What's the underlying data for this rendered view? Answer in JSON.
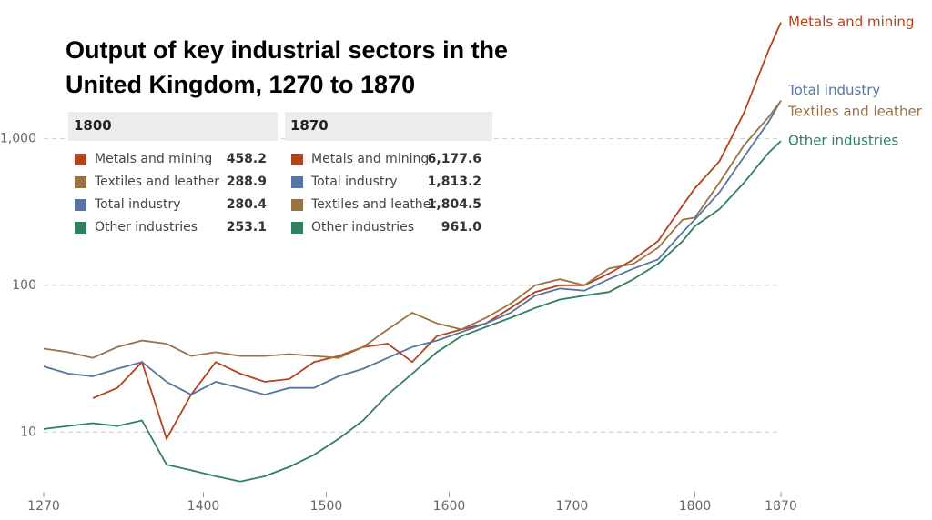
{
  "chart_data": {
    "type": "line",
    "title": "Output of key industrial sectors in the United Kingdom, 1270 to 1870",
    "x": [
      1270,
      1290,
      1310,
      1330,
      1350,
      1370,
      1390,
      1410,
      1430,
      1450,
      1470,
      1490,
      1510,
      1530,
      1550,
      1570,
      1590,
      1610,
      1630,
      1650,
      1670,
      1690,
      1710,
      1730,
      1750,
      1770,
      1790,
      1800,
      1820,
      1840,
      1860,
      1870
    ],
    "xlim": [
      1270,
      1870
    ],
    "xticks": [
      1270,
      1400,
      1500,
      1600,
      1700,
      1800,
      1870
    ],
    "ylim": [
      3.7,
      6600
    ],
    "yticks": [
      10,
      100,
      {
        "value": 1000,
        "label": "1,000"
      }
    ],
    "log_scale": true,
    "grid": true,
    "series": [
      {
        "name": "Metals and mining",
        "color": "#b5421e",
        "values": [
          null,
          null,
          17,
          20,
          30,
          9,
          18,
          30,
          25,
          22,
          23,
          30,
          33,
          38,
          40,
          30,
          45,
          50,
          55,
          70,
          90,
          100,
          100,
          120,
          150,
          200,
          350,
          458.2,
          700,
          1500,
          4000,
          6177.6
        ]
      },
      {
        "name": "Total industry",
        "color": "#5674a4",
        "values": [
          28,
          25,
          24,
          27,
          30,
          22,
          18,
          22,
          20,
          18,
          20,
          20,
          24,
          27,
          32,
          38,
          42,
          48,
          55,
          65,
          85,
          95,
          92,
          110,
          130,
          150,
          230,
          280.4,
          430,
          750,
          1300,
          1813.2
        ]
      },
      {
        "name": "Textiles and leather",
        "color": "#9a7244",
        "values": [
          37,
          35,
          32,
          38,
          42,
          40,
          33,
          35,
          33,
          33,
          34,
          33,
          32,
          38,
          50,
          65,
          55,
          50,
          60,
          75,
          100,
          110,
          100,
          130,
          140,
          180,
          280,
          288.9,
          500,
          900,
          1400,
          1804.5
        ]
      },
      {
        "name": "Other industries",
        "color": "#2e8060",
        "values": [
          10.5,
          11,
          11.5,
          11,
          12,
          6,
          5.5,
          5,
          4.6,
          5,
          5.8,
          7,
          9,
          12,
          18,
          25,
          35,
          45,
          52,
          60,
          70,
          80,
          85,
          90,
          110,
          140,
          200,
          253.1,
          330,
          500,
          800,
          961.0
        ]
      }
    ]
  },
  "tooltips": [
    {
      "title": "1800",
      "rows": [
        {
          "name": "Metals and mining",
          "value": "458.2"
        },
        {
          "name": "Textiles and leather",
          "value": "288.9"
        },
        {
          "name": "Total industry",
          "value": "280.4"
        },
        {
          "name": "Other industries",
          "value": "253.1"
        }
      ]
    },
    {
      "title": "1870",
      "rows": [
        {
          "name": "Metals and mining",
          "value": "6,177.6"
        },
        {
          "name": "Total industry",
          "value": "1,813.2"
        },
        {
          "name": "Textiles and leather",
          "value": "1,804.5"
        },
        {
          "name": "Other industries",
          "value": "961.0"
        }
      ]
    }
  ]
}
